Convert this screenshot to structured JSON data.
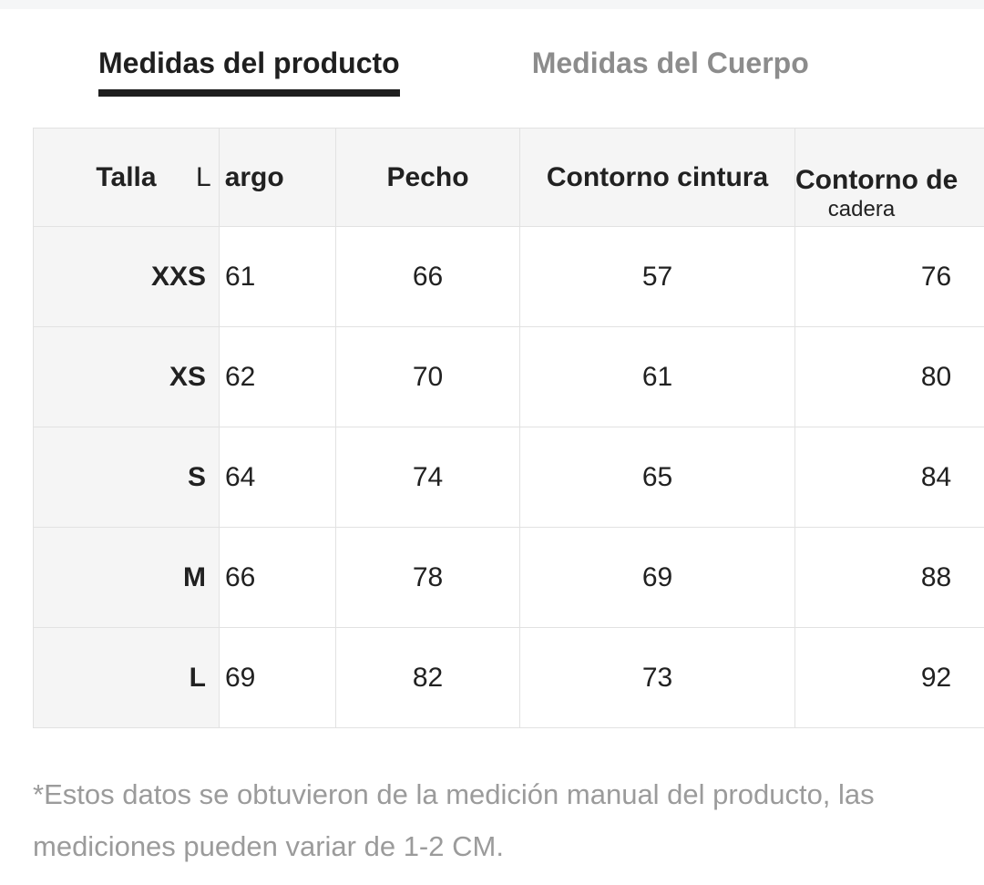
{
  "tabs": {
    "product": {
      "label": "Medidas del producto",
      "active": true
    },
    "body": {
      "label": "Medidas del Cuerpo",
      "active": false
    }
  },
  "table": {
    "headers": {
      "talla": "Talla",
      "largo": "Largo",
      "pecho": "Pecho",
      "contorno_cintura": "Contorno cintura",
      "contorno_cadera_line1": "Contorno de",
      "contorno_cadera_line2": "cadera"
    },
    "rows": [
      {
        "talla": "XXS",
        "largo": "61",
        "pecho": "66",
        "cintura": "57",
        "cadera": "76"
      },
      {
        "talla": "XS",
        "largo": "62",
        "pecho": "70",
        "cintura": "61",
        "cadera": "80"
      },
      {
        "talla": "S",
        "largo": "64",
        "pecho": "74",
        "cintura": "65",
        "cadera": "84"
      },
      {
        "talla": "M",
        "largo": "66",
        "pecho": "78",
        "cintura": "69",
        "cadera": "88"
      },
      {
        "talla": "L",
        "largo": "69",
        "pecho": "82",
        "cintura": "73",
        "cadera": "92"
      }
    ],
    "unit": "CM"
  },
  "footnote": "*Estos datos se obtuvieron de la medición manual del producto, las mediciones pueden variar de 1-2 CM.",
  "colors": {
    "active_tab": "#1f1f1f",
    "inactive_tab": "#8c8c8c",
    "header_bg": "#f5f5f5",
    "border": "#e2e2e2",
    "text": "#212121",
    "footnote": "#9b9b9b"
  }
}
